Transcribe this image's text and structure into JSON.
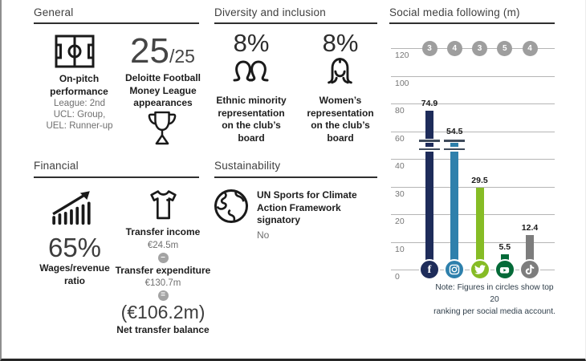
{
  "sections": {
    "general": {
      "title": "General",
      "on_pitch": {
        "label": "On-pitch performance",
        "lines": [
          "League: 2nd",
          "UCL: Group,",
          "UEL: Runner-up"
        ]
      },
      "dfml": {
        "big": "25",
        "small": "/25",
        "label": "Deloitte Football Money League appearances"
      }
    },
    "diversity": {
      "title": "Diversity and inclusion",
      "items": [
        {
          "value": "8%",
          "label": "Ethnic minority representation on the club’s board"
        },
        {
          "value": "8%",
          "label": "Women’s representation on the club’s board"
        }
      ]
    },
    "financial": {
      "title": "Financial",
      "wages": {
        "value": "65%",
        "label": "Wages/revenue ratio"
      },
      "transfers": {
        "income_label": "Transfer income",
        "income_value": "€24.5m",
        "minus": "–",
        "expenditure_label": "Transfer expenditure",
        "expenditure_value": "€130.7m",
        "equals": "=",
        "net_value": "(€106.2m)",
        "net_label": "Net transfer balance"
      }
    },
    "sustainability": {
      "title": "Sustainability",
      "label": "UN Sports for Climate Action Framework signatory",
      "value": "No"
    },
    "social": {
      "title": "Social media following (m)",
      "note_line1": "Note: Figures in circles show top 20",
      "note_line2": "ranking per social media account."
    }
  },
  "chart_data": {
    "type": "bar",
    "title": "Social media following (m)",
    "categories": [
      "Facebook",
      "Instagram",
      "Twitter",
      "YouTube",
      "TikTok"
    ],
    "values": [
      74.9,
      54.5,
      29.5,
      5.5,
      12.4
    ],
    "rankings": [
      3,
      4,
      3,
      5,
      4
    ],
    "axis_ticks": [
      0,
      10,
      20,
      30,
      40,
      60,
      80,
      100,
      120
    ],
    "axis_break_between": [
      40,
      60
    ],
    "bar_colors": [
      "#1e2c5a",
      "#2e80ac",
      "#86bc25",
      "#046a38",
      "#7d7d7d"
    ],
    "ranking_circle_color": "#9e9e9e",
    "grid_color": "#b5b5b5",
    "break_mark_color": "#3e4a5a",
    "ylabel": "",
    "xlabel": "",
    "legend": "none",
    "grid": true
  }
}
